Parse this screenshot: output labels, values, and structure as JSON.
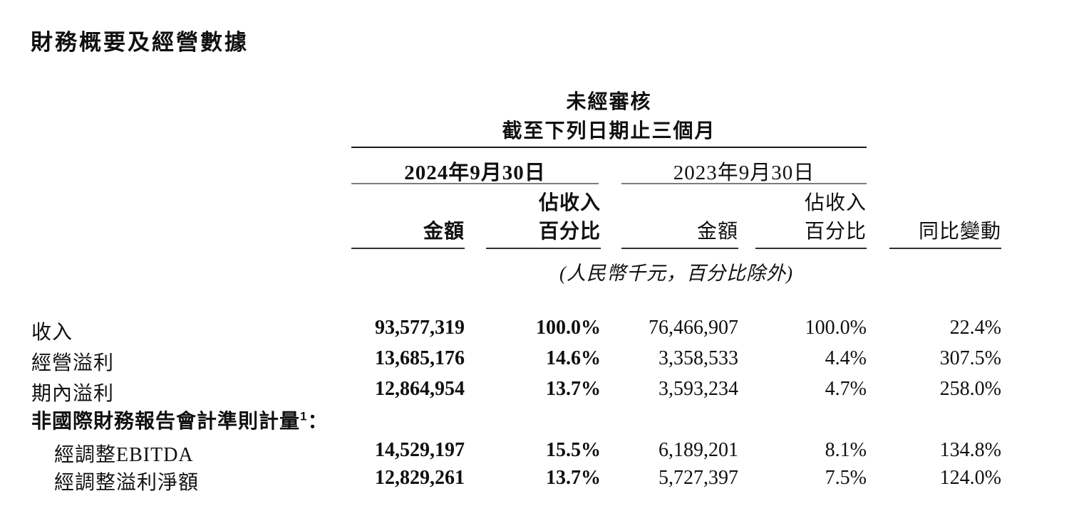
{
  "page": {
    "title": "財務概要及經營數據"
  },
  "table": {
    "top_header": {
      "unaudited": "未經審核",
      "period": "截至下列日期止三個月"
    },
    "groups": {
      "y2024": {
        "date": "2024年9月30日"
      },
      "y2023": {
        "date": "2023年9月30日"
      }
    },
    "columns": {
      "amount_2024": "金額",
      "pct_2024_line1": "佔收入",
      "pct_2024_line2": "百分比",
      "amount_2023": "金額",
      "pct_2023_line1": "佔收入",
      "pct_2023_line2": "百分比",
      "yoy": "同比變動"
    },
    "unit_note": "(人民幣千元，百分比除外)",
    "rows": [
      {
        "label": "收入",
        "amount_2024": "93,577,319",
        "pct_2024": "100.0%",
        "amount_2023": "76,466,907",
        "pct_2023": "100.0%",
        "yoy": "22.4%"
      },
      {
        "label": "經營溢利",
        "amount_2024": "13,685,176",
        "pct_2024": "14.6%",
        "amount_2023": "3,358,533",
        "pct_2023": "4.4%",
        "yoy": "307.5%"
      },
      {
        "label": "期內溢利",
        "amount_2024": "12,864,954",
        "pct_2024": "13.7%",
        "amount_2023": "3,593,234",
        "pct_2023": "4.7%",
        "yoy": "258.0%"
      },
      {
        "label": "經調整EBITDA",
        "amount_2024": "14,529,197",
        "pct_2024": "15.5%",
        "amount_2023": "6,189,201",
        "pct_2023": "8.1%",
        "yoy": "134.8%"
      },
      {
        "label": "經調整溢利淨額",
        "amount_2024": "12,829,261",
        "pct_2024": "13.7%",
        "amount_2023": "5,727,397",
        "pct_2023": "7.5%",
        "yoy": "124.0%"
      }
    ],
    "section_header": {
      "label": "非國際財務報告會計準則計量",
      "superscript": "1",
      "suffix": "："
    }
  }
}
